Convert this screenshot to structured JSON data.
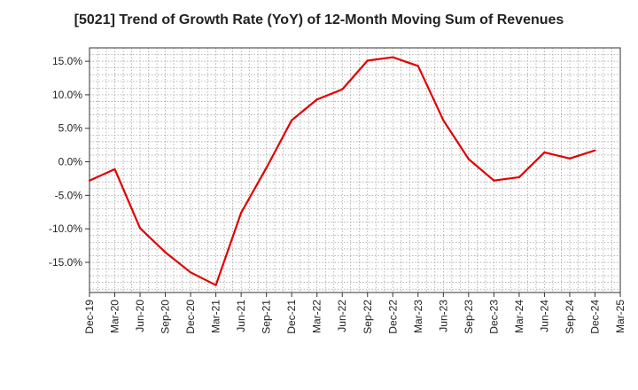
{
  "chart_data": {
    "type": "line",
    "title": "[5021]  Trend of Growth Rate (YoY) of 12-Month Moving Sum of Revenues",
    "xlabel": "",
    "ylabel": "",
    "x": [
      "Dec-19",
      "Mar-20",
      "Jun-20",
      "Sep-20",
      "Dec-20",
      "Mar-21",
      "Jun-21",
      "Sep-21",
      "Dec-21",
      "Mar-22",
      "Jun-22",
      "Sep-22",
      "Dec-22",
      "Mar-23",
      "Jun-23",
      "Sep-23",
      "Dec-23",
      "Mar-24",
      "Jun-24",
      "Sep-24",
      "Dec-24",
      "Mar-25"
    ],
    "y_ticks": [
      "15.0%",
      "10.0%",
      "5.0%",
      "0.0%",
      "-5.0%",
      "-10.0%",
      "-15.0%"
    ],
    "y_tick_values": [
      15,
      10,
      5,
      0,
      -5,
      -10,
      -15
    ],
    "ylim": [
      -19.5,
      17.0
    ],
    "grid": true,
    "series": [
      {
        "values": [
          -2.8,
          -1.1,
          -9.9,
          -13.5,
          -16.5,
          -18.4,
          -7.6,
          -0.9,
          6.2,
          9.3,
          10.8,
          15.1,
          15.6,
          14.3,
          6.2,
          0.4,
          -2.8,
          -2.3,
          1.4,
          0.5,
          1.7,
          null
        ],
        "color": "#e00000"
      }
    ]
  }
}
